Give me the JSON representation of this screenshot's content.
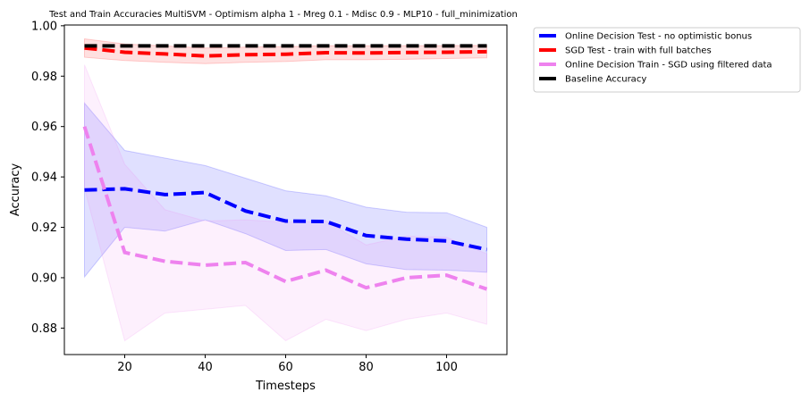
{
  "chart_data": {
    "type": "line",
    "title": "Test and Train Accuracies MultiSVM - Optimism alpha 1 - Mreg 0.1 - Mdisc 0.9 - MLP10 - full_minimization",
    "xlabel": "Timesteps",
    "ylabel": "Accuracy",
    "xlim": [
      5,
      115
    ],
    "ylim": [
      0.8695,
      1.0003
    ],
    "xticks": [
      20,
      40,
      60,
      80,
      100
    ],
    "yticks": [
      0.88,
      0.9,
      0.92,
      0.94,
      0.96,
      0.98,
      1.0
    ],
    "ytick_labels": [
      "0.88",
      "0.90",
      "0.92",
      "0.94",
      "0.96",
      "0.98",
      "1.00"
    ],
    "x": [
      10,
      20,
      30,
      40,
      50,
      60,
      70,
      80,
      90,
      100,
      110
    ],
    "legend_position": "outside-top-right",
    "grid": false,
    "series": [
      {
        "name": "Online Decision Test - no optimistic bonus",
        "color": "#0000ff",
        "values": [
          0.9348,
          0.9353,
          0.933,
          0.9338,
          0.9265,
          0.9225,
          0.9223,
          0.9167,
          0.9153,
          0.9146,
          0.9112
        ],
        "lower": [
          0.9003,
          0.92,
          0.9185,
          0.923,
          0.9175,
          0.9108,
          0.9112,
          0.9055,
          0.9032,
          0.903,
          0.9022
        ],
        "upper": [
          0.9693,
          0.9505,
          0.9475,
          0.9445,
          0.9395,
          0.9345,
          0.9325,
          0.928,
          0.926,
          0.9258,
          0.92
        ]
      },
      {
        "name": "SGD Test - train with full batches",
        "color": "#ff0000",
        "values": [
          0.9912,
          0.9895,
          0.9888,
          0.988,
          0.9885,
          0.9887,
          0.9893,
          0.9892,
          0.9894,
          0.9895,
          0.9897
        ],
        "lower": [
          0.9875,
          0.9862,
          0.9855,
          0.985,
          0.9855,
          0.9858,
          0.9865,
          0.9865,
          0.9867,
          0.987,
          0.9873
        ],
        "upper": [
          0.9948,
          0.9928,
          0.992,
          0.9912,
          0.9915,
          0.9917,
          0.9921,
          0.992,
          0.9921,
          0.9921,
          0.9922
        ]
      },
      {
        "name": "Online Decision Train - SGD using filtered data",
        "color": "#ee82ee",
        "values": [
          0.96,
          0.91,
          0.9065,
          0.905,
          0.906,
          0.8985,
          0.903,
          0.896,
          0.9,
          0.901,
          0.8955
        ],
        "lower": [
          0.9355,
          0.875,
          0.886,
          0.8875,
          0.889,
          0.875,
          0.8835,
          0.879,
          0.8835,
          0.886,
          0.8815
        ],
        "upper": [
          0.9845,
          0.945,
          0.927,
          0.9225,
          0.923,
          0.922,
          0.9225,
          0.913,
          0.9165,
          0.916,
          0.9095
        ]
      },
      {
        "name": "Baseline Accuracy",
        "color": "#000000",
        "values": [
          0.992,
          0.992,
          0.992,
          0.992,
          0.992,
          0.992,
          0.992,
          0.992,
          0.992,
          0.992,
          0.992
        ]
      }
    ]
  }
}
